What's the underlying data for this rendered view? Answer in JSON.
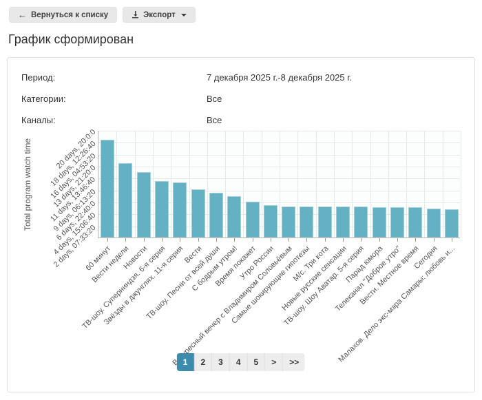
{
  "toolbar": {
    "back_label": "Вернуться к списку",
    "back_arrow": "←",
    "export_label": "Экспорт"
  },
  "page_title": "График сформирован",
  "info": {
    "rows": [
      {
        "label": "Период:",
        "value": "7 декабря 2025 г.-8 декабря 2025 г."
      },
      {
        "label": "Категории:",
        "value": "Все"
      },
      {
        "label": "Каналы:",
        "value": "Все"
      }
    ]
  },
  "chart_data": {
    "type": "bar",
    "title": "",
    "xlabel": "",
    "ylabel": "Total program watch time",
    "unit": "seconds",
    "ylim": [
      0,
      1800000
    ],
    "grid": true,
    "bar_color": "#63b1c2",
    "categories": [
      "60 минут",
      "Вести недели",
      "Новости",
      "ТВ-шоу. Суперниндзя. 6-я серия",
      "Звёзды в джунглях. 11-я серия",
      "Вести",
      "ТВ-шоу. Песни от всей души",
      "С бодрым утром!",
      "Время покажет",
      "Утро России",
      "Воскресный вечер с Владимиром Соловьёвым",
      "Самые шокирующие гипотезы",
      "М/с. Три кота",
      "Новые русские сенсации",
      "ТВ-шоу. Шоу Аватар. 5-я серия",
      "Парад юмора",
      "Телеканал \"Доброе утро\"",
      "Вести. Местное время",
      "Сегодня",
      "Малахов. Дело экс-мэра Самары: любовь и..."
    ],
    "values": [
      1635000,
      1246000,
      1096000,
      950000,
      921000,
      812000,
      746000,
      688000,
      604000,
      546000,
      523000,
      521000,
      519000,
      516000,
      514000,
      512000,
      510000,
      508000,
      485000,
      473000
    ],
    "y_ticks": [
      {
        "value": 200000,
        "label": "2 days, 07:33:20"
      },
      {
        "value": 400000,
        "label": "4 days, 15:06:40"
      },
      {
        "value": 600000,
        "label": "6 days, 22:40:0"
      },
      {
        "value": 800000,
        "label": "9 days, 06:13:20"
      },
      {
        "value": 1000000,
        "label": "11 days, 13:46:40"
      },
      {
        "value": 1200000,
        "label": "13 days, 21:20:0"
      },
      {
        "value": 1400000,
        "label": "16 days, 04:53:20"
      },
      {
        "value": 1600000,
        "label": "18 days, 12:26:40"
      },
      {
        "value": 1800000,
        "label": "20 days, 20:0:0"
      }
    ]
  },
  "pagination": {
    "pages": [
      "1",
      "2",
      "3",
      "4",
      "5",
      ">",
      ">>"
    ],
    "active": "1",
    "active_color": "#3d8bad"
  }
}
